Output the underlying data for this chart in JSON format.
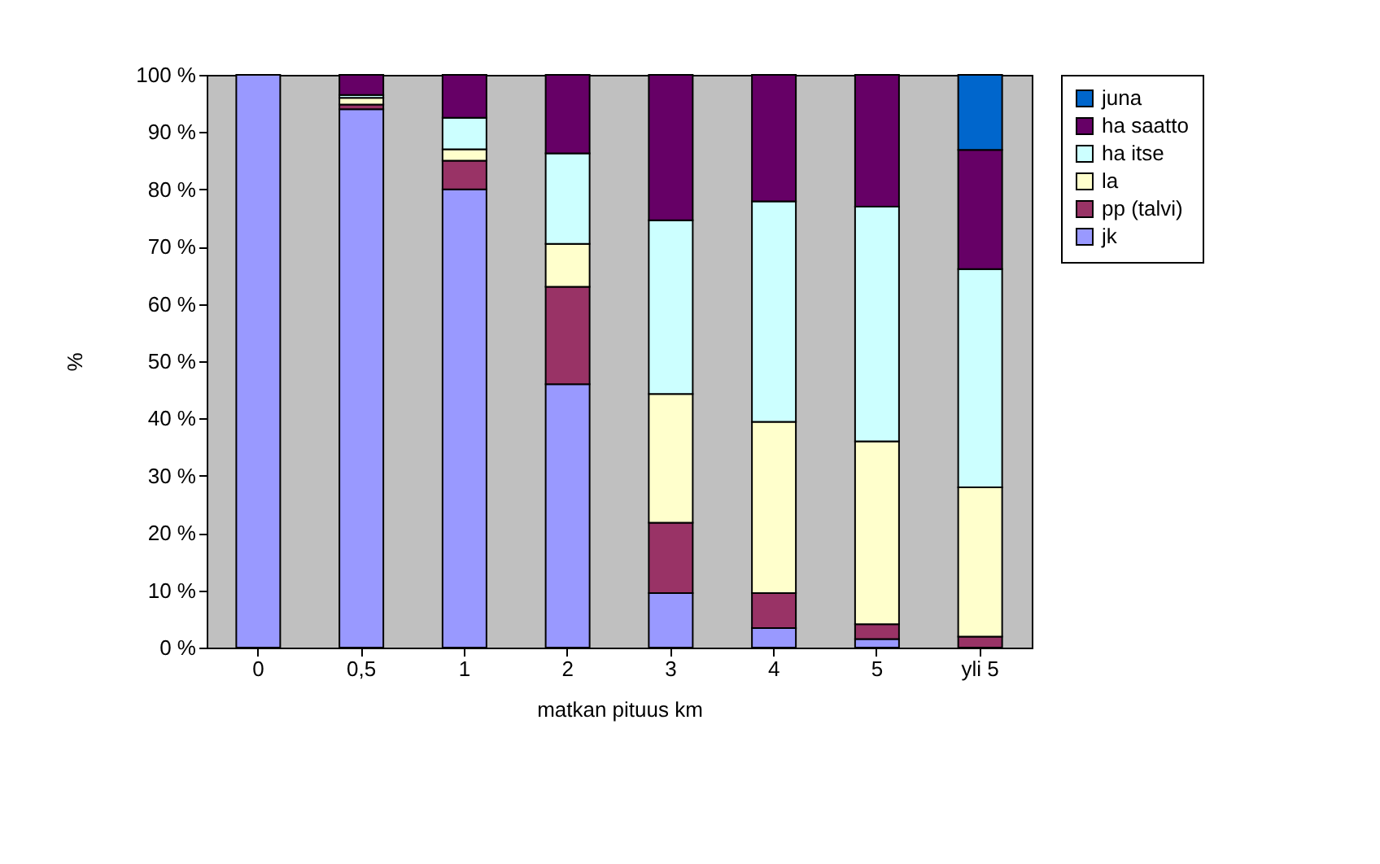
{
  "chart_data": {
    "type": "bar",
    "stacked": true,
    "xlabel": "matkan pituus km",
    "ylabel": "%",
    "categories": [
      "0",
      "0,5",
      "1",
      "2",
      "3",
      "4",
      "5",
      "yli 5"
    ],
    "series": [
      {
        "name": "jk",
        "color": "#9999ff",
        "values": [
          100,
          94,
          80,
          46,
          9.5,
          3.4,
          1.5,
          0
        ]
      },
      {
        "name": "pp (talvi)",
        "color": "#993366",
        "values": [
          0,
          0.8,
          5,
          17,
          12.3,
          6.1,
          2.6,
          1.9
        ]
      },
      {
        "name": "la",
        "color": "#ffffcc",
        "values": [
          0,
          1.2,
          2,
          7.5,
          22.5,
          29.9,
          31.9,
          26.1
        ]
      },
      {
        "name": "ha itse",
        "color": "#ccffff",
        "values": [
          0,
          0.5,
          5.5,
          15.8,
          30.3,
          38.5,
          41,
          38.1
        ]
      },
      {
        "name": "ha saatto",
        "color": "#660066",
        "values": [
          0,
          3.5,
          7.5,
          13.7,
          25.4,
          22.1,
          23,
          20.8
        ]
      },
      {
        "name": "juna",
        "color": "#0066cc",
        "values": [
          0,
          0,
          0,
          0,
          0,
          0,
          0,
          13.1
        ]
      }
    ],
    "ylim": [
      0,
      100
    ],
    "yticks": [
      {
        "value": 0,
        "label": "0 %"
      },
      {
        "value": 10,
        "label": "10 %"
      },
      {
        "value": 20,
        "label": "20 %"
      },
      {
        "value": 30,
        "label": "30 %"
      },
      {
        "value": 40,
        "label": "40 %"
      },
      {
        "value": 50,
        "label": "50 %"
      },
      {
        "value": 60,
        "label": "60 %"
      },
      {
        "value": 70,
        "label": "70 %"
      },
      {
        "value": 80,
        "label": "80 %"
      },
      {
        "value": 90,
        "label": "90 %"
      },
      {
        "value": 100,
        "label": "100 %"
      }
    ],
    "grid": false,
    "legend": "right"
  }
}
